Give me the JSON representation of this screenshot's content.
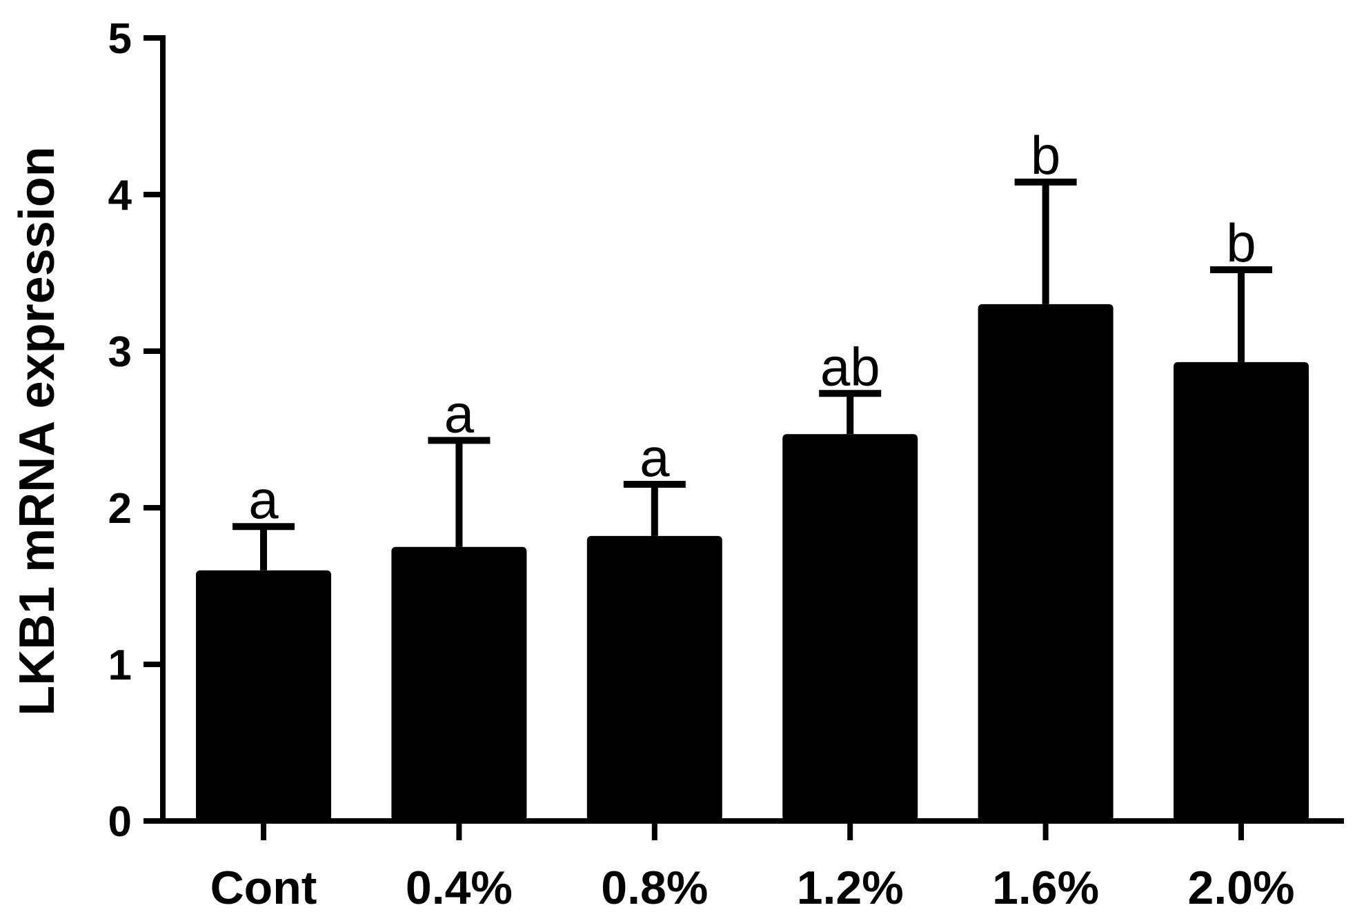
{
  "chart_data": {
    "type": "bar",
    "ylabel": "LKB1 mRNA expression",
    "xlabel": "",
    "ylim": [
      0,
      5
    ],
    "yticks": [
      0,
      1,
      2,
      3,
      4,
      5
    ],
    "categories": [
      "Cont",
      "0.4%",
      "0.8%",
      "1.2%",
      "1.6%",
      "2.0%"
    ],
    "values": [
      1.6,
      1.75,
      1.82,
      2.47,
      3.3,
      2.93
    ],
    "error_upper": [
      1.88,
      2.43,
      2.15,
      2.73,
      4.08,
      3.52
    ],
    "significance": [
      "a",
      "a",
      "a",
      "ab",
      "b",
      "b"
    ],
    "grid": false,
    "bar_color": "#000000"
  }
}
